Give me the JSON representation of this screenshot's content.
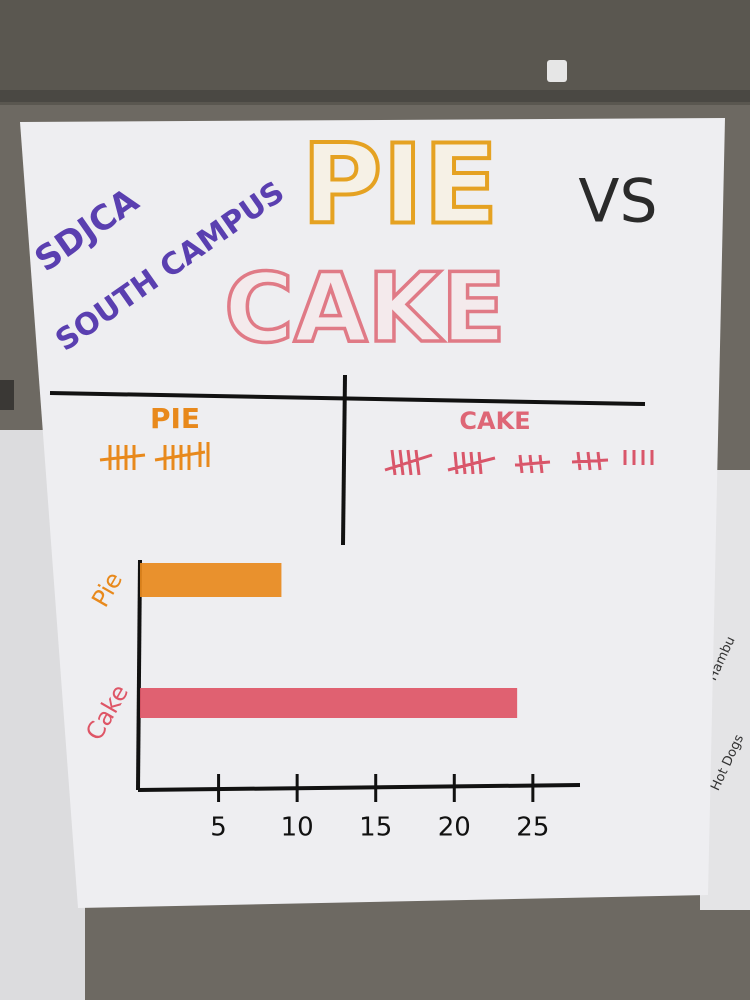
{
  "poster": {
    "campus": [
      "SDJCA",
      "SOUTH CAMPUS"
    ],
    "title_pie": "PIE",
    "vs": "VS",
    "title_cake": "CAKE",
    "tally_headings": [
      "PIE",
      "CAKE"
    ]
  },
  "side_poster": {
    "labels": [
      "Hambu",
      "Hot Dogs"
    ]
  },
  "chart_data": {
    "type": "bar",
    "orientation": "horizontal",
    "categories": [
      "Pie",
      "Cake"
    ],
    "values": [
      9,
      24
    ],
    "colors": [
      "#e8891c",
      "#de5566"
    ],
    "xlim": [
      0,
      28
    ],
    "xticks": [
      5,
      10,
      15,
      20,
      25
    ]
  }
}
